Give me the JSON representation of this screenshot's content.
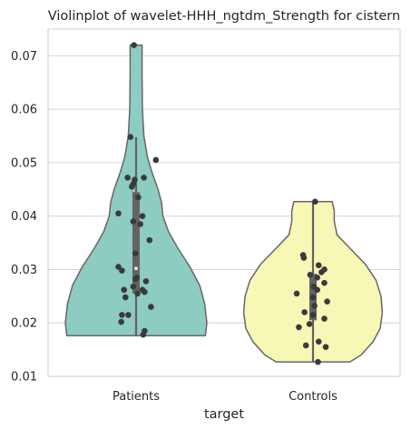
{
  "chart_data": {
    "type": "violin",
    "title": "Violinplot of wavelet-HHH_ngtdm_Strength for cistern",
    "xlabel": "target",
    "ylabel": "",
    "ylim": [
      0.01,
      0.075
    ],
    "yticks": [
      0.01,
      0.02,
      0.03,
      0.04,
      0.05,
      0.06,
      0.07
    ],
    "ytick_labels": [
      "0.01",
      "0.02",
      "0.03",
      "0.04",
      "0.05",
      "0.06",
      "0.07"
    ],
    "grid": true,
    "categories": [
      "Patients",
      "Controls"
    ],
    "colors": {
      "Patients": "#8dccc0",
      "Controls": "#f7f7b6",
      "outline": "#666666",
      "points": "#3a3a3a",
      "box": "#636363",
      "grid": "#d6d6d6",
      "median": "#ffffff"
    },
    "violins": [
      {
        "category": "Patients",
        "min": 0.0176,
        "max": 0.072,
        "q1": 0.0255,
        "median": 0.0302,
        "q3": 0.0445,
        "whisker_low": 0.0176,
        "whisker_high": 0.0548,
        "profile": [
          [
            0.0176,
            0.98
          ],
          [
            0.02,
            1.0
          ],
          [
            0.0235,
            0.97
          ],
          [
            0.027,
            0.9
          ],
          [
            0.0305,
            0.76
          ],
          [
            0.034,
            0.59
          ],
          [
            0.037,
            0.46
          ],
          [
            0.04,
            0.38
          ],
          [
            0.0425,
            0.36
          ],
          [
            0.045,
            0.31
          ],
          [
            0.048,
            0.23
          ],
          [
            0.051,
            0.16
          ],
          [
            0.055,
            0.11
          ],
          [
            0.06,
            0.09
          ],
          [
            0.066,
            0.085
          ],
          [
            0.072,
            0.085
          ]
        ],
        "points": [
          [
            0.072,
            -0.03
          ],
          [
            0.0548,
            -0.08
          ],
          [
            0.0505,
            0.28
          ],
          [
            0.0472,
            -0.12
          ],
          [
            0.0472,
            0.11
          ],
          [
            0.0468,
            -0.02
          ],
          [
            0.046,
            -0.04
          ],
          [
            0.0455,
            -0.06
          ],
          [
            0.0435,
            0.03
          ],
          [
            0.0405,
            -0.25
          ],
          [
            0.04,
            0.09
          ],
          [
            0.039,
            -0.04
          ],
          [
            0.0385,
            0.06
          ],
          [
            0.0355,
            0.19
          ],
          [
            0.033,
            -0.01
          ],
          [
            0.0305,
            -0.25
          ],
          [
            0.0298,
            -0.2
          ],
          [
            0.0285,
            0.01
          ],
          [
            0.0282,
            -0.01
          ],
          [
            0.0278,
            0.14
          ],
          [
            0.0268,
            -0.04
          ],
          [
            0.0262,
            0.09
          ],
          [
            0.0262,
            -0.17
          ],
          [
            0.0258,
            0.12
          ],
          [
            0.0255,
            0.02
          ],
          [
            0.0248,
            -0.15
          ],
          [
            0.023,
            0.21
          ],
          [
            0.0215,
            -0.2
          ],
          [
            0.0215,
            -0.11
          ],
          [
            0.0202,
            -0.21
          ],
          [
            0.0185,
            0.12
          ],
          [
            0.0178,
            0.1
          ]
        ]
      },
      {
        "category": "Controls",
        "min": 0.0127,
        "max": 0.0427,
        "q1": 0.0205,
        "median": 0.0248,
        "q3": 0.0292,
        "whisker_low": 0.0127,
        "whisker_high": 0.0427,
        "profile": [
          [
            0.0127,
            0.52
          ],
          [
            0.014,
            0.68
          ],
          [
            0.0165,
            0.85
          ],
          [
            0.019,
            0.95
          ],
          [
            0.022,
            0.98
          ],
          [
            0.025,
            0.96
          ],
          [
            0.028,
            0.89
          ],
          [
            0.031,
            0.74
          ],
          [
            0.034,
            0.52
          ],
          [
            0.0365,
            0.34
          ],
          [
            0.039,
            0.3
          ],
          [
            0.041,
            0.3
          ],
          [
            0.0427,
            0.27
          ]
        ],
        "points": [
          [
            0.0427,
            0.03
          ],
          [
            0.0327,
            -0.14
          ],
          [
            0.0322,
            -0.13
          ],
          [
            0.0308,
            0.08
          ],
          [
            0.03,
            0.16
          ],
          [
            0.0295,
            0.12
          ],
          [
            0.029,
            -0.04
          ],
          [
            0.0285,
            0.06
          ],
          [
            0.0275,
            0.16
          ],
          [
            0.0268,
            0.01
          ],
          [
            0.0262,
            0.06
          ],
          [
            0.0255,
            -0.23
          ],
          [
            0.0248,
            0.0
          ],
          [
            0.024,
            0.2
          ],
          [
            0.0232,
            0.02
          ],
          [
            0.022,
            -0.12
          ],
          [
            0.0215,
            0.0
          ],
          [
            0.0208,
            0.16
          ],
          [
            0.0198,
            -0.05
          ],
          [
            0.0192,
            -0.2
          ],
          [
            0.0165,
            0.08
          ],
          [
            0.0158,
            -0.1
          ],
          [
            0.0155,
            0.18
          ],
          [
            0.0127,
            0.07
          ]
        ]
      }
    ]
  }
}
